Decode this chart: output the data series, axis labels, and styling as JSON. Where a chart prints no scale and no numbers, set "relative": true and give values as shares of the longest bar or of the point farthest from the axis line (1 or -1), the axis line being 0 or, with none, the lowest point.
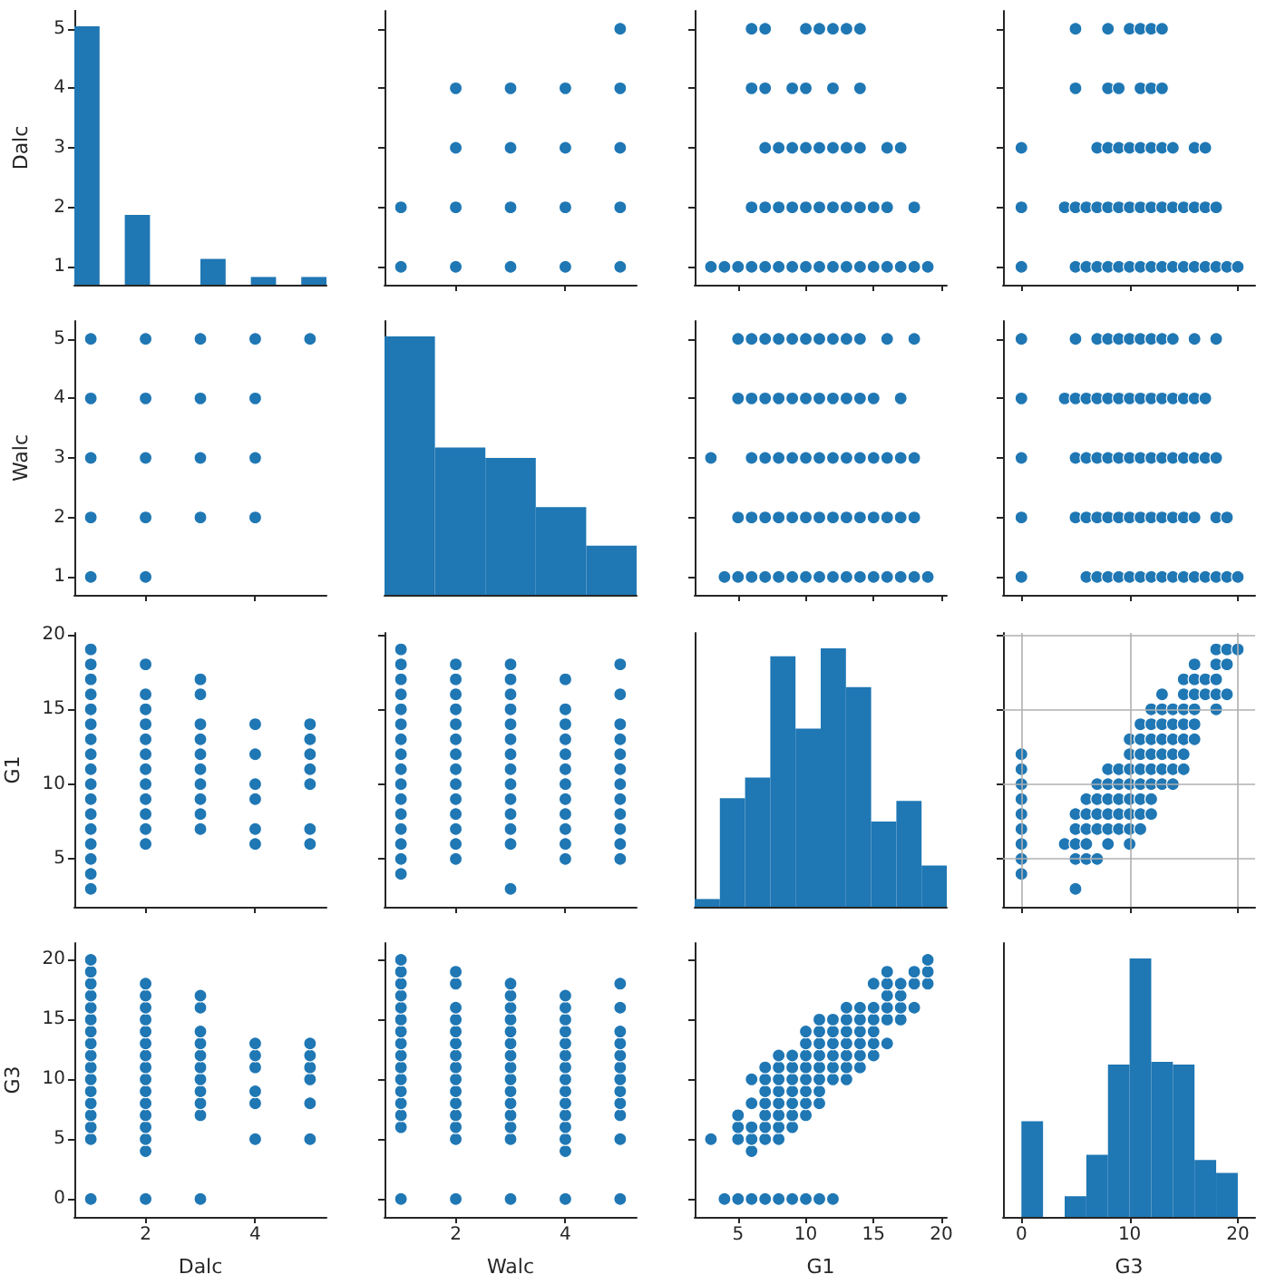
{
  "chart_data": [
    {
      "type": "bar",
      "categories": [
        null,
        null,
        null,
        null,
        null,
        null,
        null,
        null,
        null,
        null
      ],
      "values": [
        1,
        0,
        0.27,
        0,
        0,
        0.1,
        0,
        0.03,
        0,
        0.03
      ],
      "relative": true,
      "color": "#1f77b4",
      "y2lim": [
        0.7,
        5.3
      ],
      "y2ticks": [
        1,
        2,
        3,
        4,
        5
      ],
      "ylabel": "Dalc",
      "tick_labels": "y"
    },
    {
      "type": "scatter",
      "x": [
        1,
        2,
        3,
        4,
        5,
        1,
        2,
        3,
        4,
        5,
        2,
        3,
        4,
        5,
        2,
        3,
        4,
        5,
        5
      ],
      "values": [
        1,
        1,
        1,
        1,
        1,
        2,
        2,
        2,
        2,
        2,
        3,
        3,
        3,
        3,
        4,
        4,
        4,
        4,
        5
      ],
      "color": "#1f77b4",
      "marker": "circle",
      "xlim": [
        0.7,
        5.3
      ],
      "xticks": [
        2,
        4
      ],
      "ylim": [
        0.7,
        5.3
      ],
      "yticks": [
        1,
        2,
        3,
        4,
        5
      ],
      "tick_labels": false
    },
    {
      "type": "scatter",
      "x": [
        3,
        4,
        5,
        6,
        7,
        8,
        9,
        10,
        11,
        12,
        13,
        14,
        15,
        16,
        17,
        18,
        19,
        6,
        7,
        8,
        9,
        10,
        11,
        12,
        13,
        14,
        15,
        16,
        18,
        7,
        8,
        9,
        10,
        11,
        12,
        13,
        14,
        16,
        17,
        6,
        7,
        9,
        10,
        12,
        14,
        6,
        7,
        10,
        11,
        12,
        13,
        14
      ],
      "values": [
        1,
        1,
        1,
        1,
        1,
        1,
        1,
        1,
        1,
        1,
        1,
        1,
        1,
        1,
        1,
        1,
        1,
        2,
        2,
        2,
        2,
        2,
        2,
        2,
        2,
        2,
        2,
        2,
        2,
        3,
        3,
        3,
        3,
        3,
        3,
        3,
        3,
        3,
        3,
        4,
        4,
        4,
        4,
        4,
        4,
        5,
        5,
        5,
        5,
        5,
        5,
        5
      ],
      "color": "#1f77b4",
      "marker": "circle",
      "xlim": [
        1.8,
        20.4
      ],
      "xticks": [
        5,
        10,
        15,
        20
      ],
      "ylim": [
        0.7,
        5.3
      ],
      "yticks": [
        1,
        2,
        3,
        4,
        5
      ],
      "tick_labels": false
    },
    {
      "type": "scatter",
      "x": [
        0,
        5,
        6,
        7,
        8,
        9,
        10,
        11,
        12,
        13,
        14,
        15,
        16,
        17,
        18,
        19,
        20,
        0,
        4,
        5,
        6,
        7,
        8,
        9,
        10,
        11,
        12,
        13,
        14,
        15,
        16,
        17,
        18,
        0,
        7,
        8,
        9,
        10,
        11,
        12,
        13,
        14,
        16,
        17,
        5,
        8,
        9,
        11,
        12,
        13,
        5,
        8,
        10,
        11,
        12,
        13
      ],
      "values": [
        1,
        1,
        1,
        1,
        1,
        1,
        1,
        1,
        1,
        1,
        1,
        1,
        1,
        1,
        1,
        1,
        1,
        2,
        2,
        2,
        2,
        2,
        2,
        2,
        2,
        2,
        2,
        2,
        2,
        2,
        2,
        2,
        2,
        3,
        3,
        3,
        3,
        3,
        3,
        3,
        3,
        3,
        3,
        3,
        4,
        4,
        4,
        4,
        4,
        4,
        5,
        5,
        5,
        5,
        5,
        5
      ],
      "color": "#1f77b4",
      "marker": "circle",
      "xlim": [
        -1.7,
        21.6
      ],
      "xticks": [
        0,
        10,
        20
      ],
      "ylim": [
        0.7,
        5.3
      ],
      "yticks": [
        1,
        2,
        3,
        4,
        5
      ],
      "tick_labels": false
    },
    {
      "type": "scatter",
      "x": [
        1,
        2,
        1,
        2,
        3,
        4,
        1,
        2,
        3,
        4,
        1,
        2,
        3,
        4,
        1,
        2,
        3,
        4,
        5
      ],
      "values": [
        1,
        1,
        2,
        2,
        2,
        2,
        3,
        3,
        3,
        3,
        4,
        4,
        4,
        4,
        5,
        5,
        5,
        5,
        5
      ],
      "color": "#1f77b4",
      "marker": "circle",
      "xlim": [
        0.7,
        5.3
      ],
      "xticks": [
        2,
        4
      ],
      "ylim": [
        0.7,
        5.3
      ],
      "yticks": [
        1,
        2,
        3,
        4,
        5
      ],
      "ylabel": "Walc",
      "tick_labels": "y"
    },
    {
      "type": "bar",
      "categories": [
        null,
        null,
        null,
        null,
        null
      ],
      "values": [
        1,
        0.57,
        0.53,
        0.34,
        0.19
      ],
      "relative": true,
      "color": "#1f77b4",
      "tick_labels": false
    },
    {
      "type": "scatter",
      "x": [
        4,
        5,
        6,
        7,
        8,
        9,
        10,
        11,
        12,
        13,
        14,
        15,
        16,
        17,
        18,
        19,
        5,
        6,
        7,
        8,
        9,
        10,
        11,
        12,
        13,
        14,
        15,
        16,
        17,
        18,
        3,
        6,
        7,
        8,
        9,
        10,
        11,
        12,
        13,
        14,
        15,
        16,
        17,
        18,
        5,
        6,
        7,
        8,
        9,
        10,
        11,
        12,
        13,
        14,
        15,
        17,
        5,
        6,
        7,
        8,
        9,
        10,
        11,
        12,
        13,
        14,
        16,
        18
      ],
      "values": [
        1,
        1,
        1,
        1,
        1,
        1,
        1,
        1,
        1,
        1,
        1,
        1,
        1,
        1,
        1,
        1,
        2,
        2,
        2,
        2,
        2,
        2,
        2,
        2,
        2,
        2,
        2,
        2,
        2,
        2,
        3,
        3,
        3,
        3,
        3,
        3,
        3,
        3,
        3,
        3,
        3,
        3,
        3,
        3,
        4,
        4,
        4,
        4,
        4,
        4,
        4,
        4,
        4,
        4,
        4,
        4,
        5,
        5,
        5,
        5,
        5,
        5,
        5,
        5,
        5,
        5,
        5,
        5
      ],
      "color": "#1f77b4",
      "marker": "circle",
      "xlim": [
        1.8,
        20.4
      ],
      "xticks": [
        5,
        10,
        15,
        20
      ],
      "ylim": [
        0.7,
        5.3
      ],
      "yticks": [
        1,
        2,
        3,
        4,
        5
      ],
      "tick_labels": false
    },
    {
      "type": "scatter",
      "x": [
        0,
        6,
        7,
        8,
        9,
        10,
        11,
        12,
        13,
        14,
        15,
        16,
        17,
        18,
        19,
        20,
        0,
        5,
        6,
        7,
        8,
        9,
        10,
        11,
        12,
        13,
        14,
        15,
        16,
        18,
        19,
        0,
        5,
        6,
        7,
        8,
        9,
        10,
        11,
        12,
        13,
        14,
        15,
        16,
        17,
        18,
        0,
        4,
        5,
        6,
        7,
        8,
        9,
        10,
        11,
        12,
        13,
        14,
        15,
        16,
        17,
        0,
        5,
        7,
        8,
        9,
        10,
        11,
        12,
        13,
        14,
        16,
        18
      ],
      "values": [
        1,
        1,
        1,
        1,
        1,
        1,
        1,
        1,
        1,
        1,
        1,
        1,
        1,
        1,
        1,
        1,
        2,
        2,
        2,
        2,
        2,
        2,
        2,
        2,
        2,
        2,
        2,
        2,
        2,
        2,
        2,
        3,
        3,
        3,
        3,
        3,
        3,
        3,
        3,
        3,
        3,
        3,
        3,
        3,
        3,
        3,
        4,
        4,
        4,
        4,
        4,
        4,
        4,
        4,
        4,
        4,
        4,
        4,
        4,
        4,
        4,
        5,
        5,
        5,
        5,
        5,
        5,
        5,
        5,
        5,
        5,
        5,
        5
      ],
      "color": "#1f77b4",
      "marker": "circle",
      "xlim": [
        -1.7,
        21.6
      ],
      "xticks": [
        0,
        10,
        20
      ],
      "ylim": [
        0.7,
        5.3
      ],
      "yticks": [
        1,
        2,
        3,
        4,
        5
      ],
      "tick_labels": false
    },
    {
      "type": "scatter",
      "x": [
        1,
        1,
        1,
        1,
        1,
        1,
        1,
        1,
        1,
        1,
        1,
        1,
        1,
        1,
        1,
        1,
        1,
        2,
        2,
        2,
        2,
        2,
        2,
        2,
        2,
        2,
        2,
        2,
        2,
        3,
        3,
        3,
        3,
        3,
        3,
        3,
        3,
        3,
        3,
        4,
        4,
        4,
        4,
        4,
        4,
        5,
        5,
        5,
        5,
        5,
        5,
        5
      ],
      "values": [
        3,
        4,
        5,
        6,
        7,
        8,
        9,
        10,
        11,
        12,
        13,
        14,
        15,
        16,
        17,
        18,
        19,
        6,
        7,
        8,
        9,
        10,
        11,
        12,
        13,
        14,
        15,
        16,
        18,
        7,
        8,
        9,
        10,
        11,
        12,
        13,
        14,
        16,
        17,
        6,
        7,
        9,
        10,
        12,
        14,
        6,
        7,
        10,
        11,
        12,
        13,
        14
      ],
      "color": "#1f77b4",
      "marker": "circle",
      "xlim": [
        0.7,
        5.3
      ],
      "xticks": [
        2,
        4
      ],
      "ylim": [
        1.8,
        20.1
      ],
      "yticks": [
        5,
        10,
        15,
        20
      ],
      "ylabel": "G1",
      "tick_labels": "y"
    },
    {
      "type": "scatter",
      "x": [
        1,
        1,
        1,
        1,
        1,
        1,
        1,
        1,
        1,
        1,
        1,
        1,
        1,
        1,
        1,
        1,
        2,
        2,
        2,
        2,
        2,
        2,
        2,
        2,
        2,
        2,
        2,
        2,
        2,
        2,
        3,
        3,
        3,
        3,
        3,
        3,
        3,
        3,
        3,
        3,
        3,
        3,
        3,
        3,
        4,
        4,
        4,
        4,
        4,
        4,
        4,
        4,
        4,
        4,
        4,
        4,
        5,
        5,
        5,
        5,
        5,
        5,
        5,
        5,
        5,
        5,
        5,
        5
      ],
      "values": [
        4,
        5,
        6,
        7,
        8,
        9,
        10,
        11,
        12,
        13,
        14,
        15,
        16,
        17,
        18,
        19,
        5,
        6,
        7,
        8,
        9,
        10,
        11,
        12,
        13,
        14,
        15,
        16,
        17,
        18,
        3,
        6,
        7,
        8,
        9,
        10,
        11,
        12,
        13,
        14,
        15,
        16,
        17,
        18,
        5,
        6,
        7,
        8,
        9,
        10,
        11,
        12,
        13,
        14,
        15,
        17,
        5,
        6,
        7,
        8,
        9,
        10,
        11,
        12,
        13,
        14,
        16,
        18
      ],
      "color": "#1f77b4",
      "marker": "circle",
      "xlim": [
        0.7,
        5.3
      ],
      "xticks": [
        2,
        4
      ],
      "ylim": [
        1.8,
        20.1
      ],
      "yticks": [
        5,
        10,
        15,
        20
      ],
      "tick_labels": false
    },
    {
      "type": "bar",
      "categories": [
        null,
        null,
        null,
        null,
        null,
        null,
        null,
        null,
        null,
        null
      ],
      "values": [
        0.03,
        0.42,
        0.5,
        0.97,
        0.69,
        1,
        0.85,
        0.33,
        0.41,
        0.16
      ],
      "relative": true,
      "color": "#1f77b4",
      "tick_labels": false
    },
    {
      "type": "scatter",
      "x": [
        18,
        19,
        20,
        16,
        18,
        19,
        15,
        16,
        17,
        18,
        13,
        15,
        16,
        17,
        18,
        19,
        12,
        13,
        14,
        15,
        16,
        18,
        11,
        12,
        13,
        14,
        15,
        16,
        10,
        11,
        12,
        13,
        14,
        15,
        16,
        0,
        10,
        11,
        12,
        13,
        14,
        15,
        0,
        8,
        9,
        10,
        11,
        12,
        13,
        14,
        15,
        0,
        7,
        8,
        9,
        10,
        11,
        12,
        13,
        14,
        0,
        6,
        7,
        8,
        9,
        10,
        11,
        12,
        0,
        5,
        6,
        7,
        8,
        9,
        10,
        11,
        12,
        0,
        5,
        6,
        7,
        8,
        9,
        10,
        11,
        0,
        4,
        5,
        6,
        8,
        10,
        0,
        5,
        6,
        7,
        0,
        5
      ],
      "values": [
        19,
        19,
        19,
        18,
        18,
        18,
        17,
        17,
        17,
        17,
        16,
        16,
        16,
        16,
        16,
        16,
        15,
        15,
        15,
        15,
        15,
        15,
        14,
        14,
        14,
        14,
        14,
        14,
        13,
        13,
        13,
        13,
        13,
        13,
        13,
        12,
        12,
        12,
        12,
        12,
        12,
        12,
        11,
        11,
        11,
        11,
        11,
        11,
        11,
        11,
        11,
        10,
        10,
        10,
        10,
        10,
        10,
        10,
        10,
        10,
        9,
        9,
        9,
        9,
        9,
        9,
        9,
        9,
        8,
        8,
        8,
        8,
        8,
        8,
        8,
        8,
        8,
        7,
        7,
        7,
        7,
        7,
        7,
        7,
        7,
        6,
        6,
        6,
        6,
        6,
        6,
        5,
        5,
        5,
        5,
        4,
        3
      ],
      "color": "#1f77b4",
      "marker": "circle",
      "xlim": [
        -1.7,
        21.6
      ],
      "xticks": [
        0,
        10,
        20
      ],
      "ylim": [
        1.8,
        20.1
      ],
      "yticks": [
        5,
        10,
        15,
        20
      ],
      "grid": true,
      "tick_labels": false
    },
    {
      "type": "scatter",
      "x": [
        1,
        1,
        1,
        1,
        1,
        1,
        1,
        1,
        1,
        1,
        1,
        1,
        1,
        1,
        1,
        1,
        1,
        2,
        2,
        2,
        2,
        2,
        2,
        2,
        2,
        2,
        2,
        2,
        2,
        2,
        2,
        2,
        2,
        3,
        3,
        3,
        3,
        3,
        3,
        3,
        3,
        3,
        3,
        3,
        4,
        4,
        4,
        4,
        4,
        4,
        5,
        5,
        5,
        5,
        5,
        5
      ],
      "values": [
        0,
        5,
        6,
        7,
        8,
        9,
        10,
        11,
        12,
        13,
        14,
        15,
        16,
        17,
        18,
        19,
        20,
        0,
        4,
        5,
        6,
        7,
        8,
        9,
        10,
        11,
        12,
        13,
        14,
        15,
        16,
        17,
        18,
        0,
        7,
        8,
        9,
        10,
        11,
        12,
        13,
        14,
        16,
        17,
        5,
        8,
        9,
        11,
        12,
        13,
        5,
        8,
        10,
        11,
        12,
        13
      ],
      "color": "#1f77b4",
      "marker": "circle",
      "xlim": [
        0.7,
        5.3
      ],
      "xticks": [
        2,
        4
      ],
      "ylim": [
        -1.5,
        21.4
      ],
      "yticks": [
        0,
        5,
        10,
        15,
        20
      ],
      "xlabel": "Dalc",
      "ylabel": "G3"
    },
    {
      "type": "scatter",
      "x": [
        1,
        1,
        1,
        1,
        1,
        1,
        1,
        1,
        1,
        1,
        1,
        1,
        1,
        1,
        1,
        1,
        2,
        2,
        2,
        2,
        2,
        2,
        2,
        2,
        2,
        2,
        2,
        2,
        2,
        2,
        2,
        3,
        3,
        3,
        3,
        3,
        3,
        3,
        3,
        3,
        3,
        3,
        3,
        3,
        3,
        3,
        4,
        4,
        4,
        4,
        4,
        4,
        4,
        4,
        4,
        4,
        4,
        4,
        4,
        4,
        4,
        5,
        5,
        5,
        5,
        5,
        5,
        5,
        5,
        5,
        5,
        5,
        5
      ],
      "values": [
        0,
        6,
        7,
        8,
        9,
        10,
        11,
        12,
        13,
        14,
        15,
        16,
        17,
        18,
        19,
        20,
        0,
        5,
        6,
        7,
        8,
        9,
        10,
        11,
        12,
        13,
        14,
        15,
        16,
        18,
        19,
        0,
        5,
        6,
        7,
        8,
        9,
        10,
        11,
        12,
        13,
        14,
        15,
        16,
        17,
        18,
        0,
        4,
        5,
        6,
        7,
        8,
        9,
        10,
        11,
        12,
        13,
        14,
        15,
        16,
        17,
        0,
        5,
        7,
        8,
        9,
        10,
        11,
        12,
        13,
        14,
        16,
        18
      ],
      "color": "#1f77b4",
      "marker": "circle",
      "xlim": [
        0.7,
        5.3
      ],
      "xticks": [
        2,
        4
      ],
      "ylim": [
        -1.5,
        21.4
      ],
      "yticks": [
        0,
        5,
        10,
        15,
        20
      ],
      "xlabel": "Walc",
      "tick_labels": "x"
    },
    {
      "type": "scatter",
      "x": [
        19,
        19,
        19,
        18,
        18,
        18,
        17,
        17,
        17,
        17,
        16,
        16,
        16,
        16,
        16,
        16,
        15,
        15,
        15,
        15,
        15,
        15,
        14,
        14,
        14,
        14,
        14,
        14,
        13,
        13,
        13,
        13,
        13,
        13,
        13,
        12,
        12,
        12,
        12,
        12,
        12,
        12,
        11,
        11,
        11,
        11,
        11,
        11,
        11,
        11,
        11,
        10,
        10,
        10,
        10,
        10,
        10,
        10,
        10,
        10,
        9,
        9,
        9,
        9,
        9,
        9,
        9,
        9,
        8,
        8,
        8,
        8,
        8,
        8,
        8,
        8,
        8,
        7,
        7,
        7,
        7,
        7,
        7,
        7,
        7,
        6,
        6,
        6,
        6,
        6,
        6,
        5,
        5,
        5,
        5,
        4,
        3
      ],
      "values": [
        18,
        19,
        20,
        16,
        18,
        19,
        15,
        16,
        17,
        18,
        13,
        15,
        16,
        17,
        18,
        19,
        12,
        13,
        14,
        15,
        16,
        18,
        11,
        12,
        13,
        14,
        15,
        16,
        10,
        11,
        12,
        13,
        14,
        15,
        16,
        0,
        10,
        11,
        12,
        13,
        14,
        15,
        0,
        8,
        9,
        10,
        11,
        12,
        13,
        14,
        15,
        0,
        7,
        8,
        9,
        10,
        11,
        12,
        13,
        14,
        0,
        6,
        7,
        8,
        9,
        10,
        11,
        12,
        0,
        5,
        6,
        7,
        8,
        9,
        10,
        11,
        12,
        0,
        5,
        6,
        7,
        8,
        9,
        10,
        11,
        0,
        4,
        5,
        6,
        8,
        10,
        0,
        5,
        6,
        7,
        0,
        5
      ],
      "color": "#1f77b4",
      "marker": "circle",
      "xlim": [
        1.8,
        20.4
      ],
      "xticks": [
        5,
        10,
        15,
        20
      ],
      "ylim": [
        -1.5,
        21.4
      ],
      "yticks": [
        0,
        5,
        10,
        15,
        20
      ],
      "xlabel": "G1",
      "tick_labels": "x"
    },
    {
      "type": "bar",
      "x": [
        1,
        5,
        7,
        9,
        11,
        13,
        15,
        17,
        19
      ],
      "values": [
        0.37,
        0.08,
        0.24,
        0.59,
        1,
        0.6,
        0.59,
        0.22,
        0.17
      ],
      "relative": true,
      "color": "#1f77b4",
      "xlim": [
        -1.7,
        21.6
      ],
      "xticks": [
        0,
        10,
        20
      ],
      "xlabel": "G3",
      "tick_labels": "x"
    }
  ]
}
